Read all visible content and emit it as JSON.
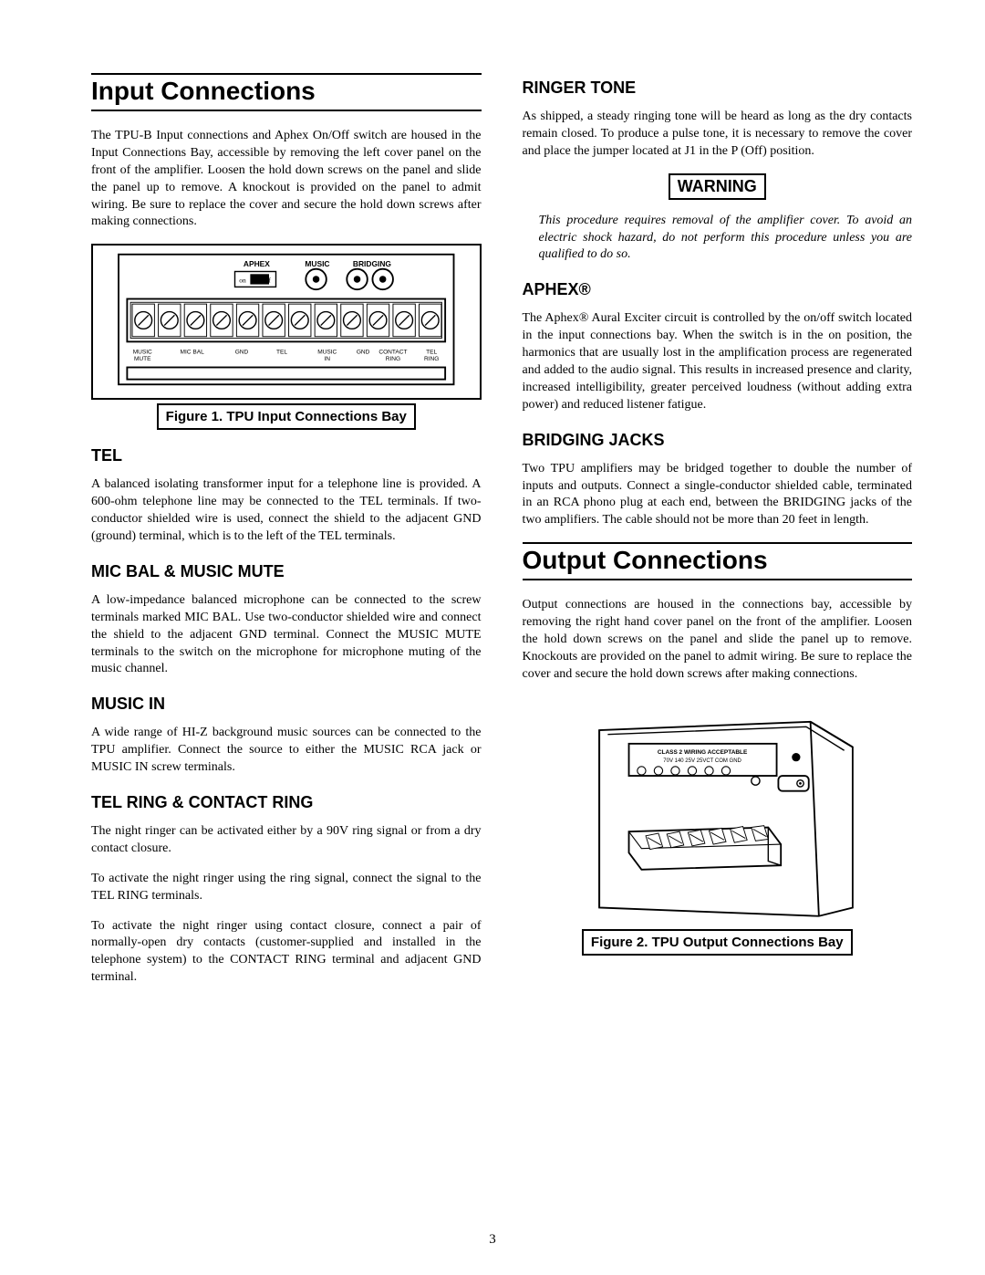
{
  "page_number": "3",
  "left": {
    "title": "Input Connections",
    "intro": "The TPU-B Input connections and Aphex On/Off switch are housed in the Input Connections Bay, accessible by removing the left cover panel on the front of the amplifier. Loosen the hold down screws on the panel and slide the panel up to remove. A knockout is provided on the panel to admit wiring. Be sure to replace the cover and secure the hold down screws after making connections.",
    "figure1": {
      "caption": "Figure 1. TPU Input Connections Bay",
      "top_labels": [
        "APHEX",
        "MUSIC",
        "BRIDGING"
      ],
      "bottom_labels": [
        "MUSIC MUTE",
        "MIC BAL",
        "GND",
        "TEL",
        "MUSIC IN",
        "GND",
        "CONTACT RING",
        "TEL RING"
      ],
      "terminal_count": 12,
      "box_stroke": "#000000",
      "fill": "#ffffff"
    },
    "sections": [
      {
        "heading": "TEL",
        "paras": [
          "A balanced isolating transformer input for a telephone line is provided. A 600-ohm telephone line may be connected to the TEL terminals. If two-conductor shielded wire is used, connect the shield to the adjacent GND (ground) terminal, which is to the left of the TEL terminals."
        ]
      },
      {
        "heading": "MIC BAL & MUSIC MUTE",
        "paras": [
          "A low-impedance balanced microphone can be connected to the screw terminals marked MIC BAL. Use two-conductor shielded wire and connect the shield to the adjacent GND terminal. Connect the MUSIC MUTE terminals to the switch on the microphone for microphone muting of the music channel."
        ]
      },
      {
        "heading": "MUSIC IN",
        "paras": [
          "A wide range of HI-Z background music sources can be connected to the TPU amplifier. Connect the source to either the MUSIC RCA jack or MUSIC IN screw terminals."
        ]
      },
      {
        "heading": "TEL RING & CONTACT RING",
        "paras": [
          "The night ringer can be activated either by a 90V ring signal or from a dry contact closure.",
          "To activate the night ringer using the ring signal, connect the signal to the TEL RING terminals.",
          "To activate the night ringer using contact closure, connect a pair of normally-open dry contacts (customer-supplied and installed in the telephone system) to the CONTACT RING terminal and adjacent GND terminal."
        ]
      }
    ]
  },
  "right": {
    "sections_top": [
      {
        "heading": "RINGER TONE",
        "paras": [
          "As shipped, a steady ringing tone will be heard as long as the dry contacts remain closed. To produce a pulse tone, it is necessary to remove the cover and place the jumper located at J1 in the P (Off) position."
        ]
      }
    ],
    "warning_label": "WARNING",
    "warning_text": "This procedure requires removal of the amplifier cover. To avoid an electric shock hazard, do not perform this procedure unless you are qualified to do so.",
    "sections_mid": [
      {
        "heading": "APHEX®",
        "paras": [
          "The Aphex® Aural Exciter circuit is controlled by the on/off switch located in the input connections bay. When the switch is in the on position, the harmonics that are usually lost in the amplification process are regenerated and added to the audio signal. This results in increased presence and clarity, increased intelligibility, greater perceived loudness (without adding extra power) and reduced listener fatigue."
        ]
      },
      {
        "heading": "BRIDGING JACKS",
        "paras": [
          "Two TPU amplifiers may be bridged together to double the number of inputs and outputs. Connect a single-conductor shielded cable, terminated in an RCA phono plug at each end, between the BRIDGING jacks of the two amplifiers. The cable should not be more than 20 feet in length."
        ]
      }
    ],
    "title2": "Output Connections",
    "output_intro": "Output connections are housed in the connections bay, accessible by removing the right hand cover panel on the front of the amplifier. Loosen the hold down screws on the panel and slide the panel up to remove. Knockouts are provided on the panel to admit wiring. Be sure to replace the cover and secure the hold down screws after making connections.",
    "figure2": {
      "caption": "Figure 2. TPU Output Connections Bay",
      "panel_label": "CLASS 2 WIRING ACCEPTABLE",
      "sub_label": "70V  140  25V  25VCT COM  GND",
      "terminal_count": 6,
      "stroke": "#000000",
      "fill": "#ffffff"
    }
  }
}
